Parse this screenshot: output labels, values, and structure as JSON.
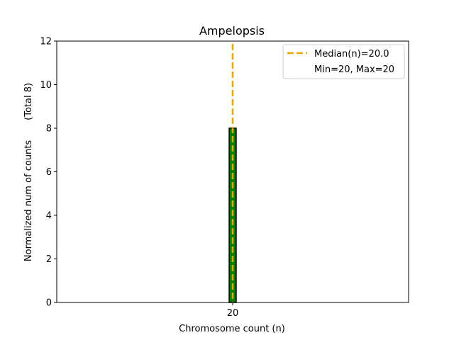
{
  "chart_data": {
    "type": "bar",
    "title": "Ampelopsis",
    "xlabel": "Chromosome count (n)",
    "ylabel": "Normalized num of counts",
    "ylabel_note": "(Total 8)",
    "categories": [
      "20"
    ],
    "values": [
      8
    ],
    "x_values": [
      20
    ],
    "xlim": [
      19.5,
      20.5
    ],
    "ylim": [
      0,
      12
    ],
    "yticks": [
      0,
      2,
      4,
      6,
      8,
      10,
      12
    ],
    "grid": false,
    "legend_position": "top-right",
    "median": 20.0,
    "legend": {
      "median_label": "Median(n)=20.0",
      "range_label": "Min=20, Max=20"
    },
    "colors": {
      "bar_fill": "#008000",
      "bar_edge": "#000000",
      "median_line": "#e6a800"
    }
  }
}
